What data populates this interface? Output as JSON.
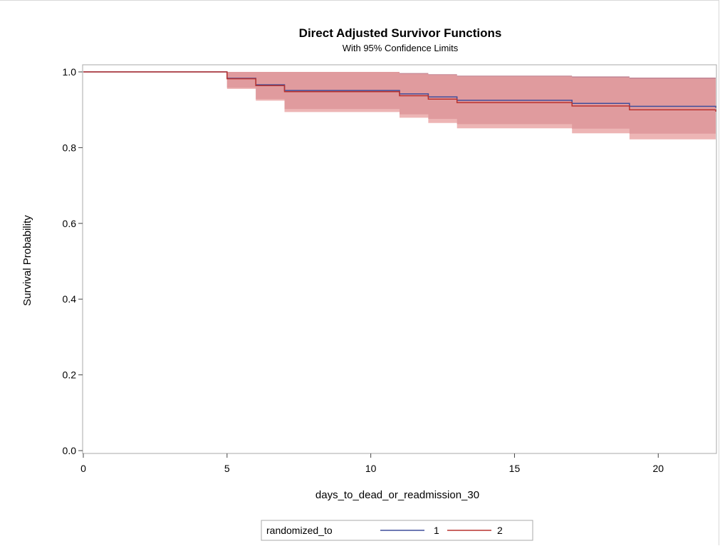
{
  "chart_data": {
    "type": "line",
    "title": "Direct Adjusted Survivor Functions",
    "subtitle": "With 95% Confidence Limits",
    "xlabel": "days_to_dead_or_readmission_30",
    "ylabel": "Survival Probability",
    "xlim": [
      0,
      22
    ],
    "ylim": [
      0,
      1
    ],
    "xticks": [
      0,
      5,
      10,
      15,
      20
    ],
    "yticks": [
      0.0,
      0.2,
      0.4,
      0.6,
      0.8,
      1.0
    ],
    "ytick_labels": [
      "0.0",
      "0.2",
      "0.4",
      "0.6",
      "0.8",
      "1.0"
    ],
    "grid": false,
    "step": true,
    "legend": {
      "title": "randomized_to",
      "placement": "bottom-center"
    },
    "series": [
      {
        "name": "1",
        "color": "#3f4e9c",
        "band_color": "#9e3f55",
        "x": [
          0,
          5,
          6,
          7,
          11,
          12,
          13,
          17,
          19,
          22
        ],
        "y": [
          1.0,
          0.983,
          0.966,
          0.951,
          0.942,
          0.934,
          0.925,
          0.917,
          0.909,
          0.905
        ],
        "lower": [
          1.0,
          0.958,
          0.928,
          0.902,
          0.888,
          0.876,
          0.862,
          0.85,
          0.837,
          0.83
        ],
        "upper": [
          1.0,
          1.0,
          1.0,
          1.0,
          0.997,
          0.994,
          0.99,
          0.988,
          0.985,
          0.983
        ]
      },
      {
        "name": "2",
        "color": "#b9322e",
        "band_color": "#e8a0a0",
        "x": [
          0,
          5,
          6,
          7,
          11,
          12,
          13,
          17,
          19,
          22
        ],
        "y": [
          1.0,
          0.982,
          0.964,
          0.948,
          0.937,
          0.928,
          0.919,
          0.91,
          0.9,
          0.895
        ],
        "lower": [
          1.0,
          0.955,
          0.924,
          0.894,
          0.879,
          0.865,
          0.851,
          0.838,
          0.822,
          0.815
        ],
        "upper": [
          1.0,
          1.0,
          1.0,
          1.0,
          0.995,
          0.992,
          0.988,
          0.985,
          0.982,
          0.98
        ]
      }
    ]
  }
}
